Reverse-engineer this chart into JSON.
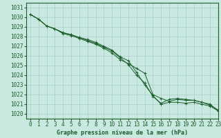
{
  "title": "Graphe pression niveau de la mer (hPa)",
  "bg_color": "#c8e8e0",
  "grid_color": "#a8ccc8",
  "line_color": "#1a5c2a",
  "xlim": [
    -0.5,
    23
  ],
  "ylim": [
    1019.5,
    1031.5
  ],
  "yticks": [
    1020,
    1021,
    1022,
    1023,
    1024,
    1025,
    1026,
    1027,
    1028,
    1029,
    1030,
    1031
  ],
  "xticks": [
    0,
    1,
    2,
    3,
    4,
    5,
    6,
    7,
    8,
    9,
    10,
    11,
    12,
    13,
    14,
    15,
    16,
    17,
    18,
    19,
    20,
    21,
    22,
    23
  ],
  "series1": [
    1030.3,
    1029.8,
    1029.1,
    1028.8,
    1028.3,
    1028.1,
    1027.8,
    1027.5,
    1027.2,
    1026.8,
    1026.3,
    1025.6,
    1025.2,
    1024.7,
    1024.2,
    1022.0,
    1021.6,
    1021.3,
    1021.5,
    1021.4,
    1021.4,
    1021.2,
    1021.0,
    1020.3
  ],
  "series2": [
    1030.3,
    1029.8,
    1029.1,
    1028.8,
    1028.4,
    1028.2,
    1027.9,
    1027.6,
    1027.3,
    1026.9,
    1026.5,
    1025.8,
    1025.1,
    1024.0,
    1023.2,
    1021.8,
    1021.1,
    1021.5,
    1021.6,
    1021.5,
    1021.4,
    1021.2,
    1020.9,
    1020.4
  ],
  "series3": [
    1030.3,
    1029.8,
    1029.1,
    1028.8,
    1028.4,
    1028.2,
    1027.9,
    1027.7,
    1027.4,
    1027.0,
    1026.6,
    1025.9,
    1025.5,
    1024.3,
    1023.0,
    1021.9,
    1021.0,
    1021.2,
    1021.2,
    1021.1,
    1021.2,
    1021.0,
    1020.8,
    1020.3
  ]
}
